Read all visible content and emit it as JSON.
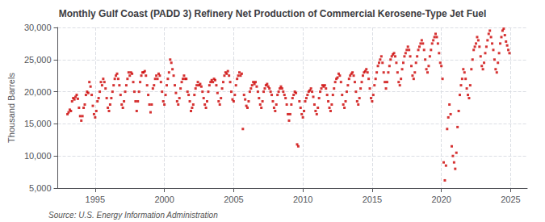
{
  "chart_data": {
    "type": "scatter",
    "title": "Monthly Gulf Coast (PADD 3) Refinery Net Production of Commercial Kerosene-Type Jet Fuel",
    "ylabel": "Thousand Barrels",
    "annotations": [
      "Source: U.S. Energy Information Administration"
    ],
    "color": "#cc0000",
    "marker": "square",
    "grid": true,
    "xlim": [
      1992.3,
      2026.2
    ],
    "xticks": [
      1995,
      2000,
      2005,
      2010,
      2015,
      2020,
      2025
    ],
    "ylim": [
      5000,
      30000
    ],
    "yticks": [
      {
        "value": 5000,
        "label": "5,000"
      },
      {
        "value": 10000,
        "label": "10,000"
      },
      {
        "value": 15000,
        "label": "15,000"
      },
      {
        "value": 20000,
        "label": "20,000"
      },
      {
        "value": 25000,
        "label": "25,000"
      },
      {
        "value": 30000,
        "label": "30,000"
      }
    ],
    "x": [
      1993.0,
      1993.083,
      1993.167,
      1993.25,
      1993.333,
      1993.417,
      1993.5,
      1993.583,
      1993.667,
      1993.75,
      1993.833,
      1993.917,
      1994.0,
      1994.083,
      1994.167,
      1994.25,
      1994.333,
      1994.417,
      1994.5,
      1994.583,
      1994.667,
      1994.75,
      1994.833,
      1994.917,
      1995.0,
      1995.083,
      1995.167,
      1995.25,
      1995.333,
      1995.417,
      1995.5,
      1995.583,
      1995.667,
      1995.75,
      1995.833,
      1995.917,
      1996.0,
      1996.083,
      1996.167,
      1996.25,
      1996.333,
      1996.417,
      1996.5,
      1996.583,
      1996.667,
      1996.75,
      1996.833,
      1996.917,
      1997.0,
      1997.083,
      1997.167,
      1997.25,
      1997.333,
      1997.417,
      1997.5,
      1997.583,
      1997.667,
      1997.75,
      1997.833,
      1997.917,
      1998.0,
      1998.083,
      1998.167,
      1998.25,
      1998.333,
      1998.417,
      1998.5,
      1998.583,
      1998.667,
      1998.75,
      1998.833,
      1998.917,
      1999.0,
      1999.083,
      1999.167,
      1999.25,
      1999.333,
      1999.417,
      1999.5,
      1999.583,
      1999.667,
      1999.75,
      1999.833,
      1999.917,
      2000.0,
      2000.083,
      2000.167,
      2000.25,
      2000.333,
      2000.417,
      2000.5,
      2000.583,
      2000.667,
      2000.75,
      2000.833,
      2000.917,
      2001.0,
      2001.083,
      2001.167,
      2001.25,
      2001.333,
      2001.417,
      2001.5,
      2001.583,
      2001.667,
      2001.75,
      2001.833,
      2001.917,
      2002.0,
      2002.083,
      2002.167,
      2002.25,
      2002.333,
      2002.417,
      2002.5,
      2002.583,
      2002.667,
      2002.75,
      2002.833,
      2002.917,
      2003.0,
      2003.083,
      2003.167,
      2003.25,
      2003.333,
      2003.417,
      2003.5,
      2003.583,
      2003.667,
      2003.75,
      2003.833,
      2003.917,
      2004.0,
      2004.083,
      2004.167,
      2004.25,
      2004.333,
      2004.417,
      2004.5,
      2004.583,
      2004.667,
      2004.75,
      2004.833,
      2004.917,
      2005.0,
      2005.083,
      2005.167,
      2005.25,
      2005.333,
      2005.417,
      2005.5,
      2005.583,
      2005.667,
      2005.75,
      2005.833,
      2005.917,
      2006.0,
      2006.083,
      2006.167,
      2006.25,
      2006.333,
      2006.417,
      2006.5,
      2006.583,
      2006.667,
      2006.75,
      2006.833,
      2006.917,
      2007.0,
      2007.083,
      2007.167,
      2007.25,
      2007.333,
      2007.417,
      2007.5,
      2007.583,
      2007.667,
      2007.75,
      2007.833,
      2007.917,
      2008.0,
      2008.083,
      2008.167,
      2008.25,
      2008.333,
      2008.417,
      2008.5,
      2008.583,
      2008.667,
      2008.75,
      2008.833,
      2008.917,
      2009.0,
      2009.083,
      2009.167,
      2009.25,
      2009.333,
      2009.417,
      2009.5,
      2009.583,
      2009.667,
      2009.75,
      2009.833,
      2009.917,
      2010.0,
      2010.083,
      2010.167,
      2010.25,
      2010.333,
      2010.417,
      2010.5,
      2010.583,
      2010.667,
      2010.75,
      2010.833,
      2010.917,
      2011.0,
      2011.083,
      2011.167,
      2011.25,
      2011.333,
      2011.417,
      2011.5,
      2011.583,
      2011.667,
      2011.75,
      2011.833,
      2011.917,
      2012.0,
      2012.083,
      2012.167,
      2012.25,
      2012.333,
      2012.417,
      2012.5,
      2012.583,
      2012.667,
      2012.75,
      2012.833,
      2012.917,
      2013.0,
      2013.083,
      2013.167,
      2013.25,
      2013.333,
      2013.417,
      2013.5,
      2013.583,
      2013.667,
      2013.75,
      2013.833,
      2013.917,
      2014.0,
      2014.083,
      2014.167,
      2014.25,
      2014.333,
      2014.417,
      2014.5,
      2014.583,
      2014.667,
      2014.75,
      2014.833,
      2014.917,
      2015.0,
      2015.083,
      2015.167,
      2015.25,
      2015.333,
      2015.417,
      2015.5,
      2015.583,
      2015.667,
      2015.75,
      2015.833,
      2015.917,
      2016.0,
      2016.083,
      2016.167,
      2016.25,
      2016.333,
      2016.417,
      2016.5,
      2016.583,
      2016.667,
      2016.75,
      2016.833,
      2016.917,
      2017.0,
      2017.083,
      2017.167,
      2017.25,
      2017.333,
      2017.417,
      2017.5,
      2017.583,
      2017.667,
      2017.75,
      2017.833,
      2017.917,
      2018.0,
      2018.083,
      2018.167,
      2018.25,
      2018.333,
      2018.417,
      2018.5,
      2018.583,
      2018.667,
      2018.75,
      2018.833,
      2018.917,
      2019.0,
      2019.083,
      2019.167,
      2019.25,
      2019.333,
      2019.417,
      2019.5,
      2019.583,
      2019.667,
      2019.75,
      2019.833,
      2019.917,
      2020.0,
      2020.083,
      2020.167,
      2020.25,
      2020.333,
      2020.417,
      2020.5,
      2020.583,
      2020.667,
      2020.75,
      2020.833,
      2020.917,
      2021.0,
      2021.083,
      2021.167,
      2021.25,
      2021.333,
      2021.417,
      2021.5,
      2021.583,
      2021.667,
      2021.75,
      2021.833,
      2021.917,
      2022.0,
      2022.083,
      2022.167,
      2022.25,
      2022.333,
      2022.417,
      2022.5,
      2022.583,
      2022.667,
      2022.75,
      2022.833,
      2022.917,
      2023.0,
      2023.083,
      2023.167,
      2023.25,
      2023.333,
      2023.417,
      2023.5,
      2023.583,
      2023.667,
      2023.75,
      2023.833,
      2023.917,
      2024.0,
      2024.083,
      2024.167,
      2024.25,
      2024.333,
      2024.417,
      2024.5,
      2024.583,
      2024.667,
      2024.75,
      2024.833,
      2024.917
    ],
    "values": [
      16500,
      16800,
      17200,
      17000,
      18500,
      19000,
      18800,
      19200,
      19500,
      18900,
      17500,
      16200,
      15500,
      16200,
      17500,
      18000,
      19500,
      20000,
      19800,
      21500,
      20800,
      19500,
      17800,
      16500,
      16000,
      17000,
      18500,
      19000,
      20000,
      21500,
      21000,
      22000,
      21500,
      20500,
      19000,
      17500,
      17000,
      18000,
      19000,
      20000,
      21000,
      22000,
      22500,
      22800,
      22000,
      21000,
      19500,
      18000,
      17500,
      18500,
      20000,
      21000,
      22000,
      23000,
      22500,
      23000,
      22800,
      21500,
      20000,
      18500,
      17000,
      18500,
      20000,
      21500,
      22500,
      23000,
      23000,
      23200,
      22500,
      21000,
      19500,
      18000,
      16800,
      18000,
      20500,
      21000,
      22000,
      22500,
      22000,
      22800,
      22500,
      21500,
      20000,
      18500,
      18000,
      19500,
      21000,
      22000,
      23000,
      25000,
      24500,
      23500,
      22500,
      21000,
      19800,
      18500,
      18000,
      19000,
      20500,
      21500,
      22000,
      22500,
      22000,
      22000,
      20000,
      19500,
      18500,
      17000,
      17500,
      18000,
      19500,
      20500,
      21000,
      21500,
      21000,
      21200,
      20800,
      20000,
      19000,
      18000,
      17500,
      18500,
      20000,
      21000,
      21500,
      21800,
      21500,
      22000,
      21800,
      21000,
      19800,
      18500,
      18000,
      19000,
      20500,
      21500,
      22500,
      23000,
      22800,
      23200,
      22500,
      21500,
      20000,
      18800,
      18500,
      19500,
      21000,
      22000,
      22500,
      23000,
      22500,
      22800,
      14200,
      19500,
      18800,
      17800,
      17500,
      18500,
      20000,
      20500,
      21000,
      21500,
      21200,
      21500,
      20800,
      20000,
      19000,
      18000,
      17500,
      18500,
      20000,
      20500,
      21000,
      21200,
      20800,
      20500,
      20000,
      19500,
      18500,
      17500,
      17000,
      18000,
      19500,
      20000,
      20500,
      20800,
      20500,
      20000,
      19500,
      19000,
      18000,
      16500,
      15500,
      16500,
      18000,
      19000,
      19500,
      20000,
      19800,
      11800,
      11500,
      18500,
      17500,
      16500,
      16000,
      17000,
      18500,
      19000,
      19500,
      20000,
      20200,
      20500,
      20000,
      19200,
      18000,
      17000,
      16500,
      17500,
      19000,
      20000,
      20500,
      21000,
      20800,
      21000,
      20500,
      19500,
      18500,
      17500,
      17000,
      18000,
      19500,
      20500,
      21500,
      22000,
      22200,
      22800,
      22500,
      21500,
      19500,
      18000,
      17500,
      18500,
      20000,
      21000,
      22000,
      22500,
      22800,
      23000,
      22500,
      21500,
      20000,
      18500,
      18000,
      19000,
      20500,
      21500,
      22500,
      23000,
      23200,
      23500,
      23000,
      22000,
      20500,
      19000,
      18500,
      19500,
      21000,
      22000,
      23000,
      24000,
      24500,
      25000,
      25500,
      24500,
      23000,
      21500,
      20500,
      21500,
      23000,
      24000,
      25000,
      25500,
      25800,
      26000,
      25500,
      24500,
      23000,
      21500,
      21000,
      22000,
      23500,
      24500,
      25500,
      26000,
      26500,
      27000,
      26500,
      25500,
      24000,
      22500,
      22000,
      23000,
      24500,
      25500,
      26500,
      27000,
      27500,
      28000,
      27500,
      26500,
      25000,
      23500,
      23000,
      24000,
      25500,
      26500,
      27500,
      28000,
      28500,
      29000,
      28500,
      27500,
      26000,
      24500,
      24000,
      22000,
      9000,
      6200,
      8500,
      14200,
      16000,
      18000,
      16500,
      11500,
      10000,
      9000,
      8000,
      10500,
      14500,
      17000,
      19500,
      21000,
      22000,
      23500,
      23000,
      22000,
      20500,
      19500,
      19000,
      21000,
      23500,
      25000,
      26500,
      27000,
      27500,
      28500,
      28000,
      27000,
      25500,
      24000,
      23500,
      24500,
      26000,
      27000,
      28000,
      29000,
      29500,
      28500,
      27500,
      26500,
      25000,
      23500,
      23000,
      24500,
      26000,
      27500,
      28500,
      29500,
      29800,
      28800,
      27800,
      27200,
      26500,
      26000
    ]
  }
}
